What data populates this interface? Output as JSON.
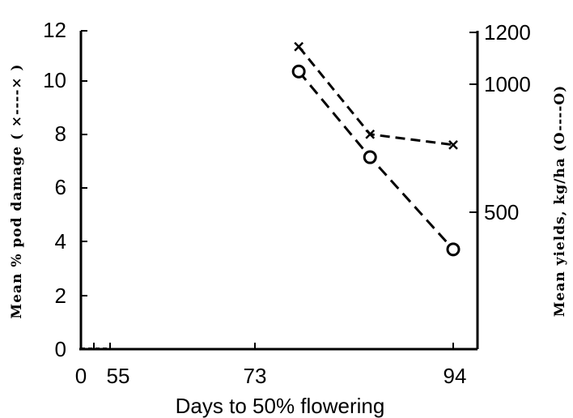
{
  "chart_data": {
    "type": "line",
    "xlabel": "Days to 50% flowering",
    "x_ticks": [
      "0",
      "55",
      "73",
      "94"
    ],
    "x_values": [
      55,
      73,
      94
    ],
    "y_left": {
      "label": "Mean % pod damage ( ×----× )",
      "ticks": [
        "0",
        "2",
        "4",
        "6",
        "8",
        "10",
        "12"
      ],
      "range": [
        0,
        12
      ]
    },
    "y_right": {
      "label": "Mean yields, kg/ha (O----O)",
      "ticks": [
        "500",
        "1000",
        "1200"
      ],
      "range": [
        0,
        1200
      ]
    },
    "series": [
      {
        "marker": "cross",
        "axis": "left",
        "values": [
          11.4,
          8.1,
          7.7
        ]
      },
      {
        "marker": "circle",
        "axis": "right",
        "values": [
          1050,
          715,
          355
        ]
      }
    ],
    "grid": false
  }
}
